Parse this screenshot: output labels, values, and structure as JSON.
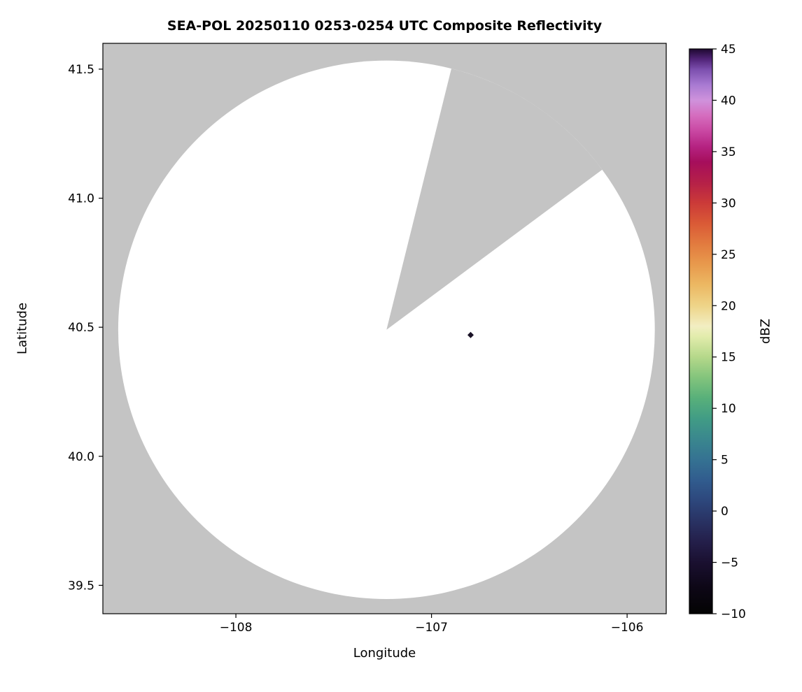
{
  "chart_data": {
    "type": "heatmap",
    "description": "Radar PPI composite reflectivity map. Gray area is outside radar coverage (masked); white disk is the scanned radar coverage area with a blocked/missing sector opening toward the north-northeast. A single small dark echo marker appears east of the radar center. Colorbar shows reflectivity in dBZ.",
    "title": "SEA-POL 20250110 0253-0254 UTC Composite Reflectivity",
    "xlabel": "Longitude",
    "ylabel": "Latitude",
    "xlim": [
      -108.68,
      -105.8
    ],
    "ylim": [
      39.39,
      41.6
    ],
    "grid": false,
    "x_ticks": {
      "values": [
        -108,
        -107,
        -106
      ],
      "labels": [
        "−108",
        "−107",
        "−106"
      ]
    },
    "y_ticks": {
      "values": [
        39.5,
        40.0,
        40.5,
        41.0,
        41.5
      ],
      "labels": [
        "39.5",
        "40.0",
        "40.5",
        "41.0",
        "41.5"
      ]
    },
    "radar": {
      "center_lon": -107.23,
      "center_lat": 40.49,
      "range_km": 116,
      "blocked_sector_azimuth_deg": [
        14,
        53.5
      ]
    },
    "echoes": [
      {
        "lon": -106.8,
        "lat": 40.47,
        "marker": "diamond",
        "color": "#1a1226"
      }
    ],
    "colors": {
      "masked_gray": "#c4c4c4",
      "coverage_white": "#ffffff",
      "frame": "#000000"
    },
    "colorbar": {
      "label": "dBZ",
      "position": "right",
      "min": -10,
      "max": 45,
      "tick_values": [
        45,
        40,
        35,
        30,
        25,
        20,
        15,
        10,
        5,
        0,
        -5,
        -10
      ],
      "tick_labels": [
        "45",
        "40",
        "35",
        "30",
        "25",
        "20",
        "15",
        "10",
        "5",
        "0",
        "−5",
        "−10"
      ],
      "stops": [
        {
          "value": -10,
          "color": "#030303"
        },
        {
          "value": -7.5,
          "color": "#0d0716"
        },
        {
          "value": -5,
          "color": "#1a1030"
        },
        {
          "value": -3,
          "color": "#241f4a"
        },
        {
          "value": -1,
          "color": "#293263"
        },
        {
          "value": 1,
          "color": "#2d477c"
        },
        {
          "value": 3,
          "color": "#315c8e"
        },
        {
          "value": 5,
          "color": "#357292"
        },
        {
          "value": 7,
          "color": "#3a878e"
        },
        {
          "value": 9,
          "color": "#419c85"
        },
        {
          "value": 11,
          "color": "#58b07a"
        },
        {
          "value": 13,
          "color": "#83c47c"
        },
        {
          "value": 15,
          "color": "#b5d88a"
        },
        {
          "value": 17,
          "color": "#e2ecac"
        },
        {
          "value": 18,
          "color": "#f2eec2"
        },
        {
          "value": 20,
          "color": "#eed488"
        },
        {
          "value": 22,
          "color": "#ecb863"
        },
        {
          "value": 24,
          "color": "#e89a4d"
        },
        {
          "value": 26,
          "color": "#e27b3f"
        },
        {
          "value": 28,
          "color": "#da5a36"
        },
        {
          "value": 30,
          "color": "#cb3a38"
        },
        {
          "value": 32,
          "color": "#b52048"
        },
        {
          "value": 34,
          "color": "#a60e5c"
        },
        {
          "value": 35.5,
          "color": "#b52382"
        },
        {
          "value": 37,
          "color": "#c947a2"
        },
        {
          "value": 38.5,
          "color": "#d56cbe"
        },
        {
          "value": 40,
          "color": "#cf92dc"
        },
        {
          "value": 41.5,
          "color": "#a87ad2"
        },
        {
          "value": 43,
          "color": "#7c4fae"
        },
        {
          "value": 44,
          "color": "#512478"
        },
        {
          "value": 45,
          "color": "#1e0830"
        }
      ]
    }
  }
}
